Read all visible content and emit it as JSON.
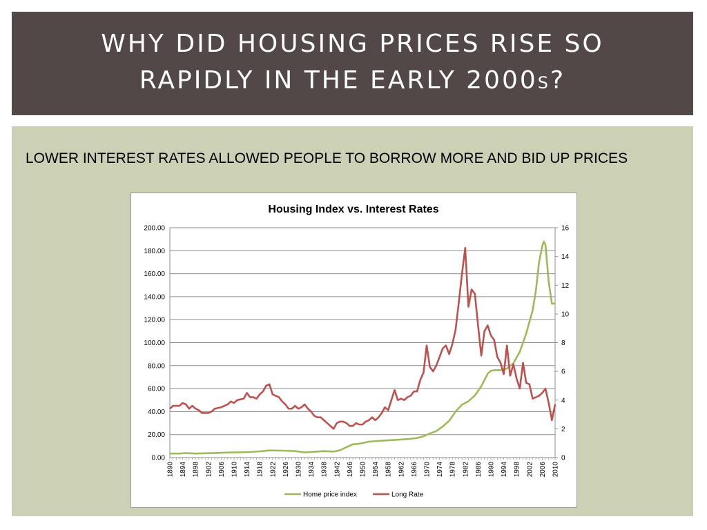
{
  "slide": {
    "title_line1": "WHY DID HOUSING PRICES RISE SO",
    "title_line2_main": "RAPIDLY IN THE EARLY 2000",
    "title_line2_small": "S",
    "title_line2_end": "?",
    "subtitle": "LOWER INTEREST RATES ALLOWED PEOPLE TO BORROW MORE AND BID UP PRICES"
  },
  "colors": {
    "title_bg": "#524847",
    "content_bg": "#ccd1b6",
    "home_price": "#9bbb59",
    "long_rate": "#c0504d"
  },
  "chart_data": {
    "type": "line",
    "title": "Housing Index vs. Interest Rates",
    "x_tick_labels": [
      "1890",
      "1894",
      "1898",
      "1902",
      "1906",
      "1910",
      "1914",
      "1918",
      "1922",
      "1926",
      "1930",
      "1934",
      "1938",
      "1942",
      "1946",
      "1950",
      "1954",
      "1958",
      "1962",
      "1966",
      "1970",
      "1974",
      "1978",
      "1982",
      "1986",
      "1990",
      "1994",
      "1998",
      "2002",
      "2006",
      "2010"
    ],
    "y_left_ticks": [
      "0.00",
      "20.00",
      "40.00",
      "60.00",
      "80.00",
      "100.00",
      "120.00",
      "140.00",
      "160.00",
      "180.00",
      "200.00"
    ],
    "y_right_ticks": [
      "0",
      "2",
      "4",
      "6",
      "8",
      "10",
      "12",
      "14",
      "16"
    ],
    "y_left_lim": [
      0,
      200
    ],
    "y_right_lim": [
      0,
      16
    ],
    "x_range": [
      1890,
      2010
    ],
    "grid": true,
    "legend_position": "bottom",
    "series": [
      {
        "name": "Home price index",
        "axis": "left",
        "points": [
          [
            1890,
            3.5
          ],
          [
            1893,
            3.5
          ],
          [
            1895,
            3.9
          ],
          [
            1898,
            3.5
          ],
          [
            1901,
            3.7
          ],
          [
            1905,
            4.0
          ],
          [
            1908,
            4.4
          ],
          [
            1911,
            4.5
          ],
          [
            1915,
            4.8
          ],
          [
            1918,
            5.4
          ],
          [
            1921,
            6.2
          ],
          [
            1925,
            6.0
          ],
          [
            1929,
            5.6
          ],
          [
            1932,
            4.5
          ],
          [
            1935,
            5.0
          ],
          [
            1938,
            5.6
          ],
          [
            1941,
            5.2
          ],
          [
            1943,
            6.3
          ],
          [
            1945,
            9.0
          ],
          [
            1947,
            11.5
          ],
          [
            1949,
            12.0
          ],
          [
            1952,
            13.8
          ],
          [
            1955,
            14.5
          ],
          [
            1958,
            15.0
          ],
          [
            1961,
            15.5
          ],
          [
            1964,
            16.0
          ],
          [
            1967,
            17.0
          ],
          [
            1969,
            18.5
          ],
          [
            1971,
            21.0
          ],
          [
            1973,
            23.0
          ],
          [
            1975,
            27.0
          ],
          [
            1977,
            32.0
          ],
          [
            1979,
            40.0
          ],
          [
            1981,
            46.0
          ],
          [
            1983,
            49.0
          ],
          [
            1985,
            54.0
          ],
          [
            1987,
            62.0
          ],
          [
            1989,
            73.0
          ],
          [
            1990,
            75.5
          ],
          [
            1991,
            76.0
          ],
          [
            1993,
            76.0
          ],
          [
            1995,
            77.5
          ],
          [
            1997,
            82.0
          ],
          [
            1999,
            92.0
          ],
          [
            2001,
            108.0
          ],
          [
            2003,
            128.0
          ],
          [
            2004,
            145.0
          ],
          [
            2005,
            170.0
          ],
          [
            2006,
            184.0
          ],
          [
            2006.5,
            188.0
          ],
          [
            2007,
            185.0
          ],
          [
            2008,
            153.0
          ],
          [
            2009,
            134.0
          ],
          [
            2010,
            134.0
          ]
        ]
      },
      {
        "name": "Long Rate",
        "axis": "right",
        "points": [
          [
            1890,
            3.4
          ],
          [
            1891,
            3.6
          ],
          [
            1893,
            3.6
          ],
          [
            1894,
            3.8
          ],
          [
            1895,
            3.7
          ],
          [
            1896,
            3.4
          ],
          [
            1897,
            3.6
          ],
          [
            1898,
            3.4
          ],
          [
            1899,
            3.3
          ],
          [
            1900,
            3.1
          ],
          [
            1901,
            3.1
          ],
          [
            1902,
            3.1
          ],
          [
            1903,
            3.2
          ],
          [
            1904,
            3.4
          ],
          [
            1906,
            3.5
          ],
          [
            1907,
            3.6
          ],
          [
            1908,
            3.7
          ],
          [
            1909,
            3.9
          ],
          [
            1910,
            3.8
          ],
          [
            1911,
            4.0
          ],
          [
            1913,
            4.1
          ],
          [
            1914,
            4.5
          ],
          [
            1915,
            4.2
          ],
          [
            1916,
            4.2
          ],
          [
            1917,
            4.1
          ],
          [
            1918,
            4.4
          ],
          [
            1919,
            4.6
          ],
          [
            1920,
            5.0
          ],
          [
            1921,
            5.1
          ],
          [
            1922,
            4.4
          ],
          [
            1923,
            4.3
          ],
          [
            1924,
            4.2
          ],
          [
            1925,
            3.9
          ],
          [
            1926,
            3.7
          ],
          [
            1927,
            3.4
          ],
          [
            1928,
            3.4
          ],
          [
            1929,
            3.6
          ],
          [
            1930,
            3.4
          ],
          [
            1931,
            3.5
          ],
          [
            1932,
            3.7
          ],
          [
            1933,
            3.4
          ],
          [
            1934,
            3.2
          ],
          [
            1935,
            2.9
          ],
          [
            1936,
            2.8
          ],
          [
            1937,
            2.8
          ],
          [
            1938,
            2.6
          ],
          [
            1939,
            2.4
          ],
          [
            1940,
            2.2
          ],
          [
            1941,
            2.0
          ],
          [
            1942,
            2.4
          ],
          [
            1943,
            2.5
          ],
          [
            1944,
            2.5
          ],
          [
            1945,
            2.4
          ],
          [
            1946,
            2.2
          ],
          [
            1947,
            2.2
          ],
          [
            1948,
            2.4
          ],
          [
            1949,
            2.3
          ],
          [
            1950,
            2.3
          ],
          [
            1951,
            2.5
          ],
          [
            1952,
            2.6
          ],
          [
            1953,
            2.8
          ],
          [
            1954,
            2.6
          ],
          [
            1955,
            2.8
          ],
          [
            1956,
            3.1
          ],
          [
            1957,
            3.5
          ],
          [
            1958,
            3.3
          ],
          [
            1959,
            4.0
          ],
          [
            1960,
            4.7
          ],
          [
            1961,
            4.0
          ],
          [
            1962,
            4.1
          ],
          [
            1963,
            4.0
          ],
          [
            1964,
            4.2
          ],
          [
            1965,
            4.3
          ],
          [
            1966,
            4.6
          ],
          [
            1967,
            4.6
          ],
          [
            1968,
            5.4
          ],
          [
            1969,
            5.9
          ],
          [
            1970,
            7.8
          ],
          [
            1971,
            6.3
          ],
          [
            1972,
            6.0
          ],
          [
            1973,
            6.4
          ],
          [
            1974,
            7.0
          ],
          [
            1975,
            7.6
          ],
          [
            1976,
            7.8
          ],
          [
            1977,
            7.2
          ],
          [
            1978,
            7.9
          ],
          [
            1979,
            8.9
          ],
          [
            1980,
            10.8
          ],
          [
            1981,
            12.8
          ],
          [
            1982,
            14.6
          ],
          [
            1983,
            10.5
          ],
          [
            1984,
            11.7
          ],
          [
            1985,
            11.4
          ],
          [
            1986,
            9.2
          ],
          [
            1987,
            7.1
          ],
          [
            1988,
            8.8
          ],
          [
            1989,
            9.2
          ],
          [
            1990,
            8.5
          ],
          [
            1991,
            8.2
          ],
          [
            1992,
            7.0
          ],
          [
            1993,
            6.6
          ],
          [
            1994,
            5.8
          ],
          [
            1995,
            7.8
          ],
          [
            1996,
            5.7
          ],
          [
            1997,
            6.5
          ],
          [
            1998,
            5.5
          ],
          [
            1999,
            4.8
          ],
          [
            2000,
            6.6
          ],
          [
            2001,
            5.2
          ],
          [
            2002,
            5.1
          ],
          [
            2003,
            4.1
          ],
          [
            2004,
            4.2
          ],
          [
            2005,
            4.3
          ],
          [
            2006,
            4.5
          ],
          [
            2007,
            4.8
          ],
          [
            2008,
            3.8
          ],
          [
            2009,
            2.6
          ],
          [
            2010,
            3.7
          ]
        ]
      }
    ]
  }
}
